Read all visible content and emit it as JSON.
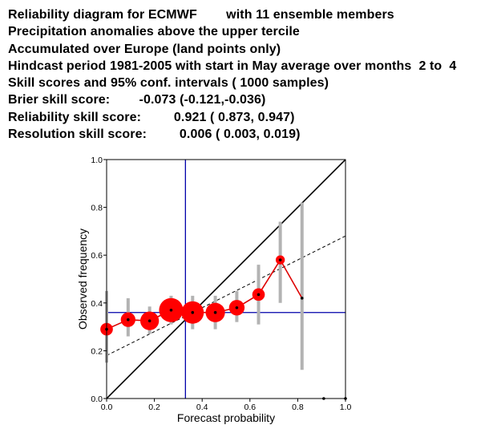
{
  "header": {
    "lines": [
      "Reliability diagram for ECMWF        with 11 ensemble members",
      "Precipitation anomalies above the upper tercile",
      "Accumulated over Europe (land points only)",
      "Hindcast period 1981-2005 with start in May average over months  2 to  4",
      "Skill scores and 95% conf. intervals ( 1000 samples)",
      "Brier skill score:        -0.073 (-0.121,-0.036)",
      "Reliability skill score:         0.921 ( 0.873, 0.947)",
      "Resolution skill score:         0.006 ( 0.003, 0.019)"
    ]
  },
  "chart_data": {
    "type": "scatter",
    "xlabel": "Forecast probability",
    "ylabel": "Observed frequency",
    "xlim": [
      0.0,
      1.0
    ],
    "ylim": [
      0.0,
      1.0
    ],
    "xticks": [
      "0.0",
      "0.2",
      "0.4",
      "0.6",
      "0.8",
      "1.0"
    ],
    "yticks": [
      "0.0",
      "0.2",
      "0.4",
      "0.6",
      "0.8",
      "1.0"
    ],
    "climatology": {
      "x": 0.33,
      "y": 0.36
    },
    "regression_line": {
      "y_at_0": 0.18,
      "y_at_1": 0.68
    },
    "points": [
      {
        "x": 0.0,
        "y": 0.29,
        "ci_low": 0.15,
        "ci_high": 0.45,
        "weight": 0.2
      },
      {
        "x": 0.09,
        "y": 0.33,
        "ci_low": 0.26,
        "ci_high": 0.42,
        "weight": 0.3
      },
      {
        "x": 0.18,
        "y": 0.325,
        "ci_low": 0.27,
        "ci_high": 0.385,
        "weight": 0.55
      },
      {
        "x": 0.27,
        "y": 0.37,
        "ci_low": 0.31,
        "ci_high": 0.43,
        "weight": 1.0
      },
      {
        "x": 0.36,
        "y": 0.36,
        "ci_low": 0.29,
        "ci_high": 0.43,
        "weight": 0.85
      },
      {
        "x": 0.455,
        "y": 0.36,
        "ci_low": 0.29,
        "ci_high": 0.43,
        "weight": 0.6
      },
      {
        "x": 0.545,
        "y": 0.38,
        "ci_low": 0.32,
        "ci_high": 0.45,
        "weight": 0.35
      },
      {
        "x": 0.636,
        "y": 0.435,
        "ci_low": 0.31,
        "ci_high": 0.56,
        "weight": 0.2
      },
      {
        "x": 0.727,
        "y": 0.58,
        "ci_low": 0.4,
        "ci_high": 0.74,
        "weight": 0.08
      },
      {
        "x": 0.818,
        "y": 0.42,
        "ci_low": 0.12,
        "ci_high": 0.82,
        "weight": 0.0
      },
      {
        "x": 0.909,
        "y": 0.0,
        "ci_low": null,
        "ci_high": null,
        "weight": 0.0
      },
      {
        "x": 1.0,
        "y": 0.0,
        "ci_low": null,
        "ci_high": null,
        "weight": 0.0
      }
    ],
    "colors": {
      "reliability_curve": "#dd0000",
      "marker": "#ff0000",
      "climatology": "#0000aa",
      "diagonal": "#000000",
      "regression": "#000000",
      "ci_bar": "#b3b3b3"
    },
    "grid": false
  }
}
